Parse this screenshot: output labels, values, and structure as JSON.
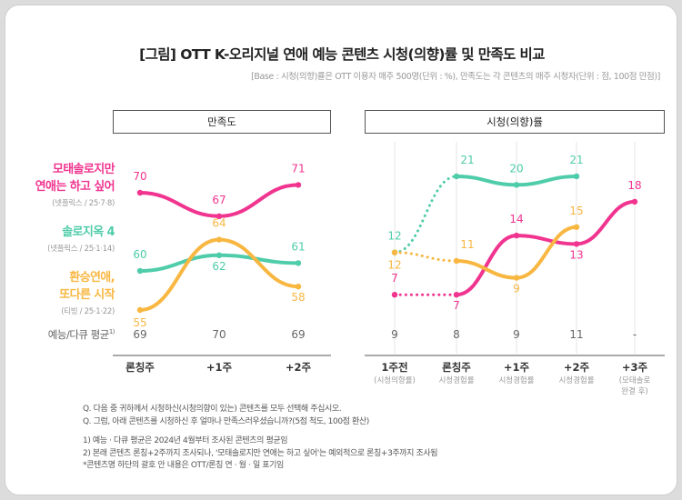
{
  "title": "[그림] OTT K-오리지널 연애 예능 콘텐츠 시청(의향)률 및 만족도 비교",
  "base_note": "[Base : 시청(의향)률은 OTT 이용자 매주 500명(단위 : %), 만족도는 각 콘텐츠의 매주 시청자(단위 : 점, 100점 만점)]",
  "panel_left_title": "만족도",
  "panel_right_title": "시청(의향)률",
  "avg_label": "예능/다큐 평균",
  "avg_footnote_mark": "1)",
  "colors": {
    "magenta": "#f0348f",
    "teal": "#4fcca9",
    "orange": "#f8b741",
    "axis": "#555555"
  },
  "legend": [
    {
      "name_line1": "모태솔로지만",
      "name_line2": "연애는 하고 싶어",
      "sub": "(넷플릭스 / 25·7·8)",
      "color": "#f0348f"
    },
    {
      "name_line1": "솔로지옥 4",
      "name_line2": "",
      "sub": "(넷플릭스 / 25·1·14)",
      "color": "#4fcca9"
    },
    {
      "name_line1": "환승연애,",
      "name_line2": "또다른 시작",
      "sub": "(티빙 / 25·1·22)",
      "color": "#f8b741"
    }
  ],
  "chart_data": [
    {
      "type": "line",
      "title": "만족도",
      "categories": [
        "론칭주",
        "+1주",
        "+2주"
      ],
      "series": [
        {
          "name": "모태솔로지만 연애는 하고 싶어",
          "values": [
            70,
            67,
            71
          ]
        },
        {
          "name": "솔로지옥 4",
          "values": [
            60,
            62,
            61
          ]
        },
        {
          "name": "환승연애, 또다른 시작",
          "values": [
            55,
            64,
            58
          ]
        }
      ],
      "averages": [
        "69",
        "70",
        "69"
      ]
    },
    {
      "type": "line",
      "title": "시청(의향)률",
      "categories": [
        {
          "label": "1주전",
          "sub": "(시청의향률)"
        },
        {
          "label": "론칭주",
          "sub": "시청경험률"
        },
        {
          "label": "+1주",
          "sub": "시청경험률"
        },
        {
          "label": "+2주",
          "sub": "시청경험률"
        },
        {
          "label": "+3주",
          "sub": "(모태솔로",
          "sub2": "완결 후)"
        }
      ],
      "note": "1주전 구간은 점선(시청의향률)",
      "series": [
        {
          "name": "모태솔로지만 연애는 하고 싶어",
          "values": [
            7,
            7,
            14,
            13,
            18
          ]
        },
        {
          "name": "솔로지옥 4",
          "values": [
            12,
            21,
            20,
            21,
            null
          ]
        },
        {
          "name": "환승연애, 또다른 시작",
          "values": [
            12,
            11,
            9,
            15,
            null
          ]
        }
      ],
      "averages": [
        "9",
        "8",
        "9",
        "11",
        "-"
      ]
    }
  ],
  "footnotes": {
    "q1": "Q. 다음 중 귀하께서 시청하신(시청의향이 있는) 콘텐츠를 모두 선택해 주십시오.",
    "q2": "Q. 그럼, 아래 콘텐츠를 시청하신 후 얼마나 만족스러우셨습니까?(5점 척도, 100점 환산)",
    "n1": "1) 예능 · 다큐 평균은 2024년 4월부터 조사된 콘텐츠의 평균임",
    "n2": "2) 본래 콘텐츠 론칭+2주까지 조사되나, '모태솔로지만 연애는 하고 싶어'는 예외적으로 론칭+3주까지 조사됨",
    "n3": "*콘텐츠명 하단의 괄호 안 내용은 OTT/론칭 연 · 월 · 일 표기임"
  }
}
